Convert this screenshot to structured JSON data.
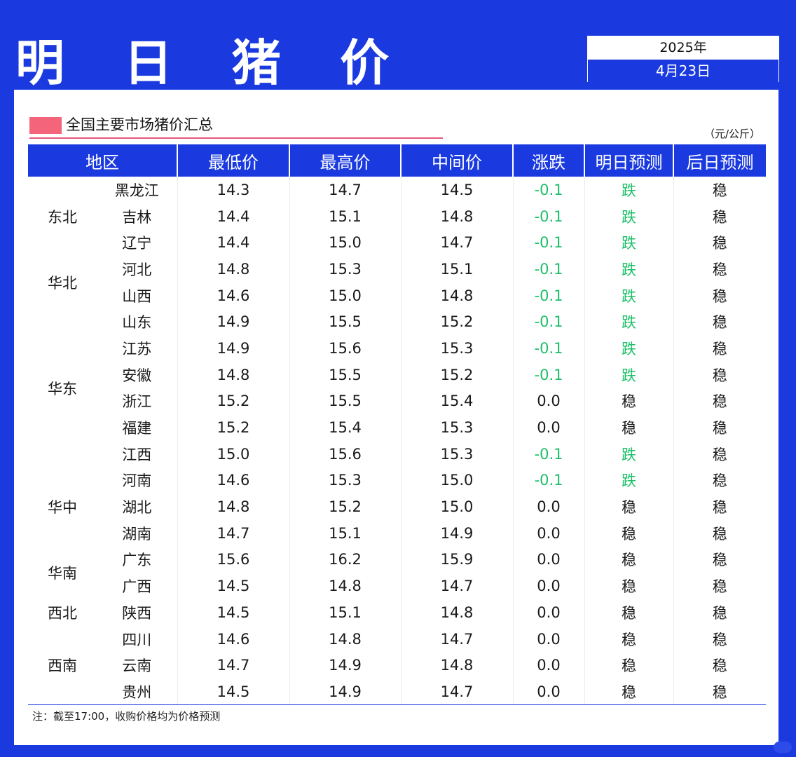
{
  "header": {
    "title": "明 日 猪 价",
    "year": "2025年",
    "date": "4月23日"
  },
  "section": {
    "subtitle": "全国主要市场猪价汇总",
    "unit": "（元/公斤）"
  },
  "table": {
    "columns": [
      "地区",
      "最低价",
      "最高价",
      "中间价",
      "涨跌",
      "明日预测",
      "后日预测"
    ],
    "groups": [
      {
        "region": "东北",
        "rows": [
          {
            "province": "黑龙江",
            "low": "14.3",
            "high": "14.7",
            "mid": "14.5",
            "change": "-0.1",
            "tomorrow": "跌",
            "after": "稳"
          },
          {
            "province": "吉林",
            "low": "14.4",
            "high": "15.1",
            "mid": "14.8",
            "change": "-0.1",
            "tomorrow": "跌",
            "after": "稳"
          },
          {
            "province": "辽宁",
            "low": "14.4",
            "high": "15.0",
            "mid": "14.7",
            "change": "-0.1",
            "tomorrow": "跌",
            "after": "稳"
          }
        ]
      },
      {
        "region": "华北",
        "rows": [
          {
            "province": "河北",
            "low": "14.8",
            "high": "15.3",
            "mid": "15.1",
            "change": "-0.1",
            "tomorrow": "跌",
            "after": "稳"
          },
          {
            "province": "山西",
            "low": "14.6",
            "high": "15.0",
            "mid": "14.8",
            "change": "-0.1",
            "tomorrow": "跌",
            "after": "稳"
          }
        ]
      },
      {
        "region": "华东",
        "rows": [
          {
            "province": "山东",
            "low": "14.9",
            "high": "15.5",
            "mid": "15.2",
            "change": "-0.1",
            "tomorrow": "跌",
            "after": "稳"
          },
          {
            "province": "江苏",
            "low": "14.9",
            "high": "15.6",
            "mid": "15.3",
            "change": "-0.1",
            "tomorrow": "跌",
            "after": "稳"
          },
          {
            "province": "安徽",
            "low": "14.8",
            "high": "15.5",
            "mid": "15.2",
            "change": "-0.1",
            "tomorrow": "跌",
            "after": "稳"
          },
          {
            "province": "浙江",
            "low": "15.2",
            "high": "15.5",
            "mid": "15.4",
            "change": "0.0",
            "tomorrow": "稳",
            "after": "稳"
          },
          {
            "province": "福建",
            "low": "15.2",
            "high": "15.4",
            "mid": "15.3",
            "change": "0.0",
            "tomorrow": "稳",
            "after": "稳"
          },
          {
            "province": "江西",
            "low": "15.0",
            "high": "15.6",
            "mid": "15.3",
            "change": "-0.1",
            "tomorrow": "跌",
            "after": "稳"
          }
        ]
      },
      {
        "region": "华中",
        "rows": [
          {
            "province": "河南",
            "low": "14.6",
            "high": "15.3",
            "mid": "15.0",
            "change": "-0.1",
            "tomorrow": "跌",
            "after": "稳"
          },
          {
            "province": "湖北",
            "low": "14.8",
            "high": "15.2",
            "mid": "15.0",
            "change": "0.0",
            "tomorrow": "稳",
            "after": "稳"
          },
          {
            "province": "湖南",
            "low": "14.7",
            "high": "15.1",
            "mid": "14.9",
            "change": "0.0",
            "tomorrow": "稳",
            "after": "稳"
          }
        ]
      },
      {
        "region": "华南",
        "rows": [
          {
            "province": "广东",
            "low": "15.6",
            "high": "16.2",
            "mid": "15.9",
            "change": "0.0",
            "tomorrow": "稳",
            "after": "稳"
          },
          {
            "province": "广西",
            "low": "14.5",
            "high": "14.8",
            "mid": "14.7",
            "change": "0.0",
            "tomorrow": "稳",
            "after": "稳"
          }
        ]
      },
      {
        "region": "西北",
        "rows": [
          {
            "province": "陕西",
            "low": "14.5",
            "high": "15.1",
            "mid": "14.8",
            "change": "0.0",
            "tomorrow": "稳",
            "after": "稳"
          }
        ]
      },
      {
        "region": "西南",
        "rows": [
          {
            "province": "四川",
            "low": "14.6",
            "high": "14.8",
            "mid": "14.7",
            "change": "0.0",
            "tomorrow": "稳",
            "after": "稳"
          },
          {
            "province": "云南",
            "low": "14.7",
            "high": "14.9",
            "mid": "14.8",
            "change": "0.0",
            "tomorrow": "稳",
            "after": "稳"
          },
          {
            "province": "贵州",
            "low": "14.5",
            "high": "14.9",
            "mid": "14.7",
            "change": "0.0",
            "tomorrow": "稳",
            "after": "稳"
          }
        ]
      }
    ]
  },
  "footer": {
    "note": "注：截至17:00，收购价格均为价格预测"
  },
  "colors": {
    "brand_blue": "#1a3ae0",
    "down_green": "#1dbf68",
    "accent_pink": "#f4657c"
  }
}
